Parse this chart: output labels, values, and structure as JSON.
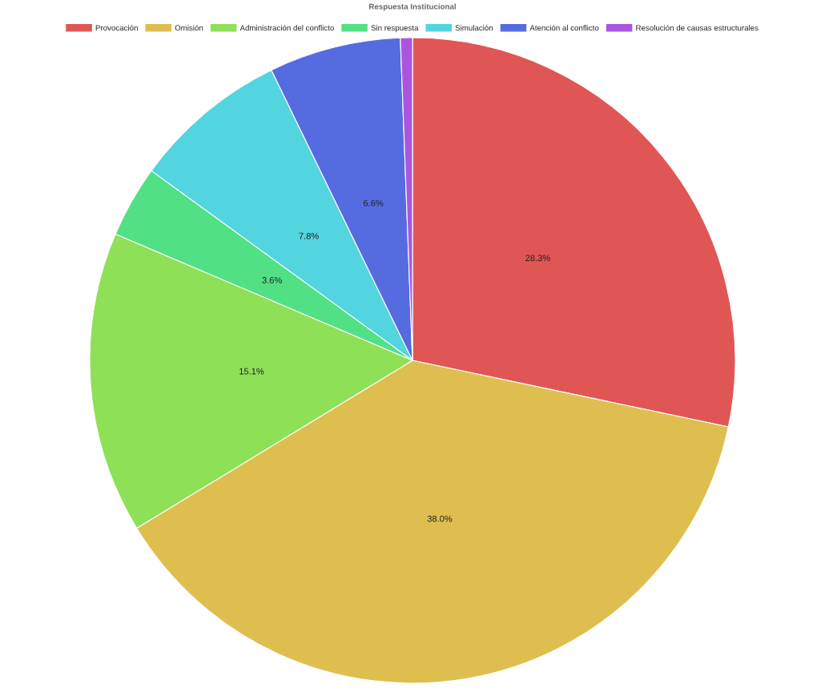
{
  "chart_data": {
    "type": "pie",
    "title": "Respuesta Institucional",
    "categories": [
      "Provocación",
      "Omisión",
      "Administración del conflicto",
      "Sin respuesta",
      "Simulación",
      "Atención al conflicto",
      "Resolución de causas estructurales"
    ],
    "values": [
      28.3,
      38.0,
      15.1,
      3.6,
      7.8,
      6.6,
      0.6
    ],
    "value_labels": [
      "28.3%",
      "38.0%",
      "15.1%",
      "3.6%",
      "7.8%",
      "6.6%",
      null
    ],
    "colors": [
      "#e05654",
      "#dfbe50",
      "#8ee057",
      "#52e085",
      "#53d5e0",
      "#566be0",
      "#aa55e0"
    ],
    "legend": "top"
  }
}
